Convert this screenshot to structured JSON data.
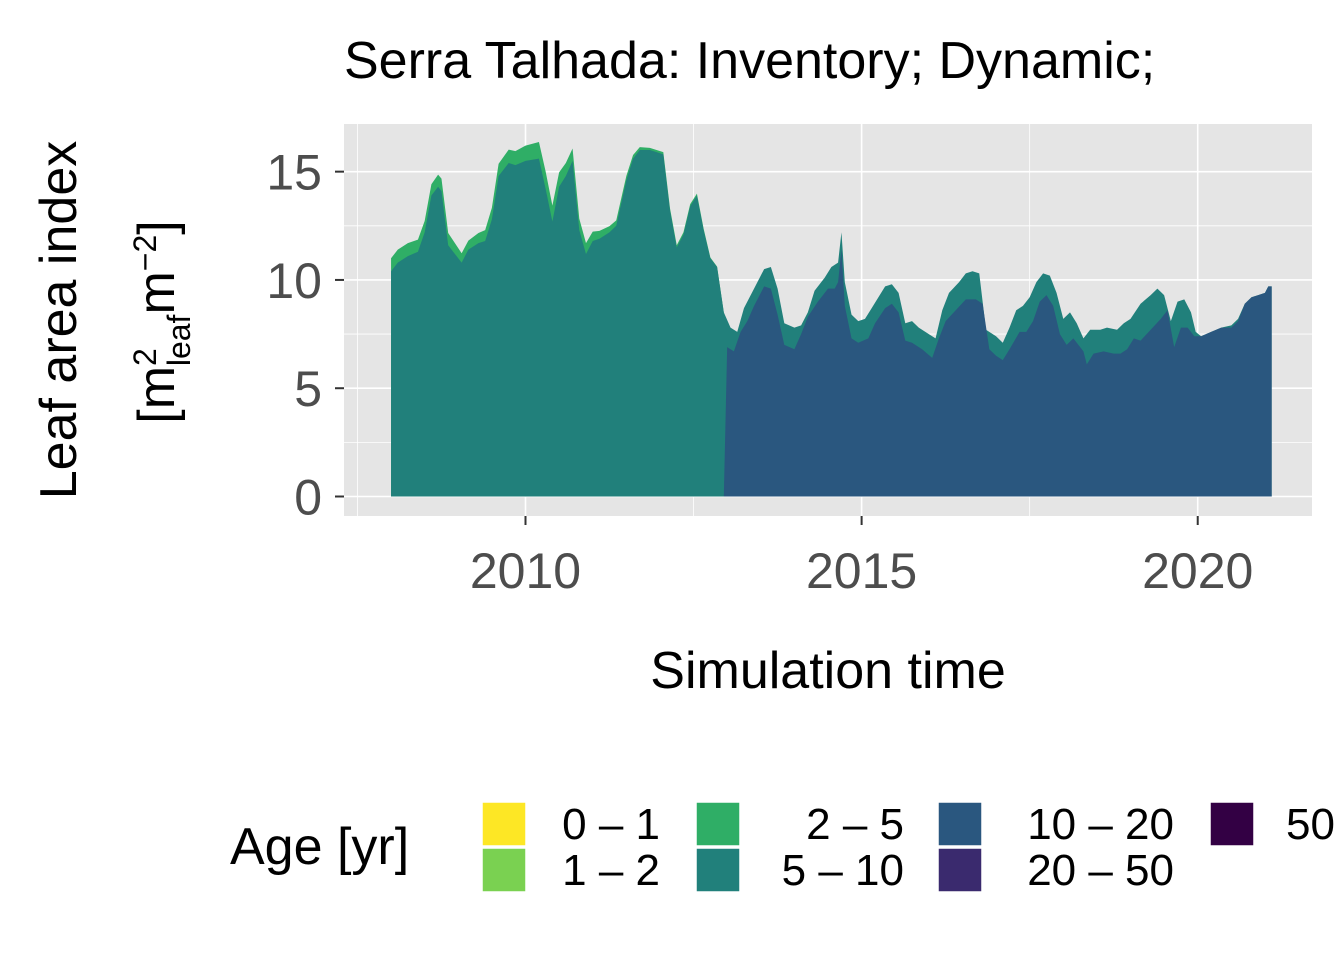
{
  "chart_data": {
    "type": "area",
    "title": "Serra Talhada: Inventory; Dynamic;",
    "xlabel": "Simulation time",
    "ylabel": "Leaf area index",
    "ylabel_unit": {
      "open": "[",
      "m1": "m",
      "sup1": "2",
      "sub1": "leaf",
      "m2": "m",
      "sup2": "−2",
      "close": "]"
    },
    "xlim": [
      2007.3,
      2021.7
    ],
    "ylim": [
      -0.9,
      17.2
    ],
    "x_ticks": [
      2010,
      2015,
      2020
    ],
    "x_tick_labels": [
      "2010",
      "2015",
      "2020"
    ],
    "y_ticks": [
      0,
      5,
      10,
      15
    ],
    "y_tick_labels": [
      "0",
      "5",
      "10",
      "15"
    ],
    "grid": true,
    "legend": {
      "title": "Age [yr]",
      "placement": "bottom",
      "entries": [
        {
          "label": "0 – 1",
          "color": "#fde725"
        },
        {
          "label": "1 – 2",
          "color": "#7ad151"
        },
        {
          "label": "2 – 5",
          "color": "#2fae66"
        },
        {
          "label": "5 – 10",
          "color": "#21807b"
        },
        {
          "label": "10 – 20",
          "color": "#2a577f"
        },
        {
          "label": "20 – 50",
          "color": "#3a2a6e"
        },
        {
          "label": "50",
          "color": "#330044"
        }
      ]
    },
    "series": [
      {
        "name": "2 – 5",
        "color": "#2fae66",
        "points": [
          [
            2008.0,
            0.6
          ],
          [
            2008.3,
            0.6
          ],
          [
            2008.55,
            0.5
          ],
          [
            2008.8,
            0.6
          ],
          [
            2009.1,
            0.4
          ],
          [
            2009.4,
            0.5
          ],
          [
            2009.7,
            0.6
          ],
          [
            2010.0,
            0.7
          ],
          [
            2010.3,
            0.8
          ],
          [
            2010.6,
            0.6
          ],
          [
            2010.9,
            0.5
          ],
          [
            2011.2,
            0.3
          ],
          [
            2011.5,
            0.2
          ],
          [
            2011.8,
            0.1
          ],
          [
            2012.1,
            0.1
          ],
          [
            2012.5,
            0.1
          ],
          [
            2012.9,
            0.0
          ],
          [
            2012.97,
            0.0
          ]
        ]
      },
      {
        "name": "5 – 10",
        "color": "#21807b",
        "points": [
          [
            2008.0,
            10.4
          ],
          [
            2008.1,
            10.8
          ],
          [
            2008.25,
            11.1
          ],
          [
            2008.4,
            11.3
          ],
          [
            2008.5,
            12.2
          ],
          [
            2008.6,
            13.9
          ],
          [
            2008.7,
            14.3
          ],
          [
            2008.75,
            14.1
          ],
          [
            2008.85,
            11.6
          ],
          [
            2008.95,
            11.2
          ],
          [
            2009.05,
            10.8
          ],
          [
            2009.15,
            11.4
          ],
          [
            2009.3,
            11.7
          ],
          [
            2009.4,
            11.8
          ],
          [
            2009.5,
            12.8
          ],
          [
            2009.6,
            14.8
          ],
          [
            2009.75,
            15.4
          ],
          [
            2009.85,
            15.3
          ],
          [
            2010.0,
            15.5
          ],
          [
            2010.2,
            15.6
          ],
          [
            2010.3,
            14.2
          ],
          [
            2010.4,
            12.7
          ],
          [
            2010.5,
            14.3
          ],
          [
            2010.6,
            14.8
          ],
          [
            2010.7,
            15.5
          ],
          [
            2010.8,
            12.3
          ],
          [
            2010.9,
            11.2
          ],
          [
            2011.0,
            11.8
          ],
          [
            2011.1,
            11.9
          ],
          [
            2011.25,
            12.2
          ],
          [
            2011.35,
            12.5
          ],
          [
            2011.5,
            14.6
          ],
          [
            2011.6,
            15.6
          ],
          [
            2011.7,
            16.0
          ],
          [
            2011.85,
            16.0
          ],
          [
            2011.95,
            15.9
          ],
          [
            2012.05,
            15.8
          ],
          [
            2012.15,
            13.2
          ],
          [
            2012.25,
            11.5
          ],
          [
            2012.35,
            12.1
          ],
          [
            2012.45,
            13.4
          ],
          [
            2012.55,
            13.9
          ],
          [
            2012.65,
            12.3
          ],
          [
            2012.75,
            11.0
          ],
          [
            2012.85,
            10.6
          ],
          [
            2012.95,
            8.5
          ],
          [
            2013.05,
            7.8
          ],
          [
            2013.15,
            7.6
          ],
          [
            2013.25,
            8.7
          ],
          [
            2013.4,
            9.6
          ],
          [
            2013.55,
            10.5
          ],
          [
            2013.65,
            10.6
          ],
          [
            2013.75,
            9.6
          ],
          [
            2013.85,
            8.0
          ],
          [
            2014.0,
            7.8
          ],
          [
            2014.1,
            7.9
          ],
          [
            2014.2,
            8.5
          ],
          [
            2014.3,
            9.5
          ],
          [
            2014.45,
            10.1
          ],
          [
            2014.55,
            10.6
          ],
          [
            2014.65,
            10.8
          ],
          [
            2014.7,
            12.2
          ],
          [
            2014.75,
            9.9
          ],
          [
            2014.85,
            8.4
          ],
          [
            2014.95,
            8.1
          ],
          [
            2015.05,
            8.2
          ],
          [
            2015.15,
            8.7
          ],
          [
            2015.25,
            9.2
          ],
          [
            2015.35,
            9.7
          ],
          [
            2015.45,
            9.8
          ],
          [
            2015.55,
            9.4
          ],
          [
            2015.65,
            8.0
          ],
          [
            2015.75,
            8.1
          ],
          [
            2015.85,
            7.8
          ],
          [
            2016.0,
            7.5
          ],
          [
            2016.1,
            7.3
          ],
          [
            2016.2,
            8.6
          ],
          [
            2016.3,
            9.4
          ],
          [
            2016.45,
            9.9
          ],
          [
            2016.55,
            10.3
          ],
          [
            2016.65,
            10.4
          ],
          [
            2016.75,
            10.3
          ],
          [
            2016.85,
            7.7
          ],
          [
            2017.0,
            7.4
          ],
          [
            2017.1,
            7.1
          ],
          [
            2017.2,
            7.8
          ],
          [
            2017.3,
            8.6
          ],
          [
            2017.4,
            8.8
          ],
          [
            2017.5,
            9.2
          ],
          [
            2017.6,
            9.9
          ],
          [
            2017.7,
            10.3
          ],
          [
            2017.8,
            10.2
          ],
          [
            2017.9,
            9.4
          ],
          [
            2018.0,
            8.2
          ],
          [
            2018.1,
            8.5
          ],
          [
            2018.2,
            8.0
          ],
          [
            2018.3,
            7.3
          ],
          [
            2018.4,
            7.7
          ],
          [
            2018.55,
            7.7
          ],
          [
            2018.65,
            7.8
          ],
          [
            2018.8,
            7.7
          ],
          [
            2018.9,
            8.0
          ],
          [
            2019.0,
            8.2
          ],
          [
            2019.15,
            8.9
          ],
          [
            2019.3,
            9.3
          ],
          [
            2019.4,
            9.6
          ],
          [
            2019.5,
            9.3
          ],
          [
            2019.6,
            8.1
          ],
          [
            2019.7,
            9.0
          ],
          [
            2019.8,
            9.1
          ],
          [
            2019.9,
            8.5
          ],
          [
            2019.97,
            7.6
          ],
          [
            2020.05,
            7.4
          ],
          [
            2020.2,
            7.6
          ],
          [
            2020.35,
            7.8
          ],
          [
            2020.5,
            7.9
          ],
          [
            2020.6,
            8.2
          ],
          [
            2020.7,
            8.9
          ],
          [
            2020.8,
            9.2
          ],
          [
            2020.9,
            9.3
          ],
          [
            2021.0,
            9.4
          ],
          [
            2021.05,
            9.7
          ],
          [
            2021.1,
            9.7
          ]
        ]
      },
      {
        "name": "10 – 20",
        "color": "#2a577f",
        "points": [
          [
            2012.95,
            0.0
          ],
          [
            2013.0,
            6.9
          ],
          [
            2013.1,
            6.7
          ],
          [
            2013.2,
            7.6
          ],
          [
            2013.3,
            8.1
          ],
          [
            2013.4,
            8.8
          ],
          [
            2013.55,
            9.7
          ],
          [
            2013.65,
            9.6
          ],
          [
            2013.75,
            8.4
          ],
          [
            2013.85,
            7.0
          ],
          [
            2014.0,
            6.8
          ],
          [
            2014.1,
            7.5
          ],
          [
            2014.2,
            8.3
          ],
          [
            2014.35,
            9.0
          ],
          [
            2014.5,
            9.6
          ],
          [
            2014.6,
            9.6
          ],
          [
            2014.65,
            9.9
          ],
          [
            2014.7,
            11.4
          ],
          [
            2014.75,
            8.8
          ],
          [
            2014.85,
            7.3
          ],
          [
            2014.95,
            7.1
          ],
          [
            2015.1,
            7.3
          ],
          [
            2015.2,
            8.0
          ],
          [
            2015.35,
            8.7
          ],
          [
            2015.45,
            8.9
          ],
          [
            2015.55,
            8.5
          ],
          [
            2015.65,
            7.2
          ],
          [
            2015.75,
            7.1
          ],
          [
            2015.9,
            6.8
          ],
          [
            2016.05,
            6.4
          ],
          [
            2016.15,
            7.3
          ],
          [
            2016.25,
            8.1
          ],
          [
            2016.4,
            8.6
          ],
          [
            2016.55,
            9.1
          ],
          [
            2016.7,
            9.1
          ],
          [
            2016.8,
            8.9
          ],
          [
            2016.9,
            6.8
          ],
          [
            2017.0,
            6.5
          ],
          [
            2017.1,
            6.3
          ],
          [
            2017.2,
            6.8
          ],
          [
            2017.35,
            7.6
          ],
          [
            2017.45,
            7.6
          ],
          [
            2017.55,
            8.1
          ],
          [
            2017.65,
            9.0
          ],
          [
            2017.75,
            9.3
          ],
          [
            2017.85,
            8.8
          ],
          [
            2017.95,
            7.5
          ],
          [
            2018.05,
            7.0
          ],
          [
            2018.15,
            7.3
          ],
          [
            2018.3,
            6.7
          ],
          [
            2018.35,
            6.1
          ],
          [
            2018.45,
            6.6
          ],
          [
            2018.6,
            6.7
          ],
          [
            2018.75,
            6.6
          ],
          [
            2018.85,
            6.6
          ],
          [
            2018.95,
            6.8
          ],
          [
            2019.05,
            7.3
          ],
          [
            2019.15,
            7.2
          ],
          [
            2019.3,
            7.7
          ],
          [
            2019.45,
            8.2
          ],
          [
            2019.55,
            8.6
          ],
          [
            2019.65,
            6.9
          ],
          [
            2019.75,
            7.8
          ],
          [
            2019.85,
            7.8
          ],
          [
            2019.95,
            7.4
          ],
          [
            2020.05,
            7.4
          ],
          [
            2020.2,
            7.6
          ],
          [
            2020.35,
            7.8
          ],
          [
            2020.5,
            7.8
          ],
          [
            2020.6,
            8.1
          ],
          [
            2020.7,
            8.9
          ],
          [
            2020.8,
            9.2
          ],
          [
            2020.9,
            9.3
          ],
          [
            2021.0,
            9.4
          ],
          [
            2021.05,
            9.7
          ],
          [
            2021.1,
            9.7
          ]
        ]
      }
    ]
  }
}
